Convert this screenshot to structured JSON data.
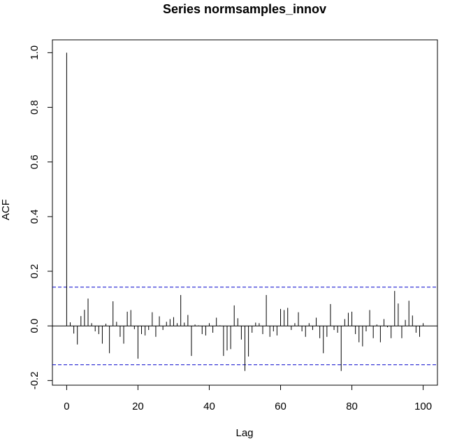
{
  "chart_data": {
    "type": "acf",
    "title": "Series  normsamples_innov",
    "xlabel": "Lag",
    "ylabel": "ACF",
    "x": [
      0,
      1,
      2,
      3,
      4,
      5,
      6,
      7,
      8,
      9,
      10,
      11,
      12,
      13,
      14,
      15,
      16,
      17,
      18,
      19,
      20,
      21,
      22,
      23,
      24,
      25,
      26,
      27,
      28,
      29,
      30,
      31,
      32,
      33,
      34,
      35,
      36,
      37,
      38,
      39,
      40,
      41,
      42,
      43,
      44,
      45,
      46,
      47,
      48,
      49,
      50,
      51,
      52,
      53,
      54,
      55,
      56,
      57,
      58,
      59,
      60,
      61,
      62,
      63,
      64,
      65,
      66,
      67,
      68,
      69,
      70,
      71,
      72,
      73,
      74,
      75,
      76,
      77,
      78,
      79,
      80,
      81,
      82,
      83,
      84,
      85,
      86,
      87,
      88,
      89,
      90,
      91,
      92,
      93,
      94,
      95,
      96,
      97,
      98,
      99,
      100
    ],
    "values": [
      1.0,
      0.013,
      -0.028,
      -0.068,
      0.036,
      0.059,
      0.1,
      0.01,
      -0.02,
      -0.03,
      -0.065,
      0.008,
      -0.1,
      0.09,
      0.015,
      -0.04,
      -0.065,
      0.052,
      0.058,
      -0.012,
      -0.12,
      -0.03,
      -0.035,
      -0.015,
      0.05,
      -0.04,
      0.035,
      -0.015,
      0.015,
      0.025,
      0.032,
      0.01,
      0.113,
      0.012,
      0.04,
      -0.11,
      0.005,
      0.002,
      -0.03,
      -0.035,
      0.01,
      -0.025,
      0.03,
      0.002,
      -0.11,
      -0.09,
      -0.085,
      0.075,
      0.028,
      -0.05,
      -0.165,
      -0.112,
      -0.025,
      0.012,
      0.01,
      -0.03,
      0.113,
      -0.04,
      -0.02,
      -0.035,
      0.062,
      0.058,
      0.066,
      -0.015,
      0.01,
      0.05,
      -0.02,
      -0.04,
      0.01,
      -0.015,
      0.03,
      -0.045,
      -0.1,
      -0.04,
      0.08,
      -0.015,
      -0.025,
      -0.165,
      0.025,
      0.048,
      0.052,
      -0.03,
      -0.06,
      -0.075,
      -0.02,
      0.058,
      -0.045,
      0.005,
      -0.06,
      0.025,
      -0.005,
      -0.045,
      0.128,
      0.082,
      -0.045,
      0.022,
      0.092,
      0.038,
      -0.025,
      -0.04,
      0.01
    ],
    "color": "#000000",
    "conf_limits": [
      0.142,
      -0.142
    ],
    "conf_color": "#0000cc",
    "xlim": [
      -4,
      104
    ],
    "ylim": [
      -0.217,
      1.047
    ],
    "xticks": [
      0,
      20,
      40,
      60,
      80,
      100
    ],
    "yticks": [
      -0.2,
      {
        "value": 0,
        "label": "0.0"
      },
      0.2,
      0.4,
      0.6,
      0.8,
      {
        "value": 1,
        "label": "1.0"
      }
    ]
  }
}
